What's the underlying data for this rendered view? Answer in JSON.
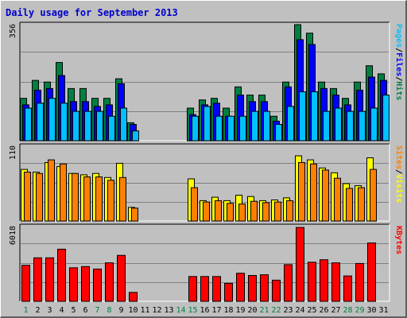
{
  "chart_data": {
    "type": "bar",
    "title": "Daily usage for September 2013",
    "categories": [
      "1",
      "2",
      "3",
      "4",
      "5",
      "6",
      "7",
      "8",
      "9",
      "10",
      "11",
      "12",
      "13",
      "14",
      "15",
      "16",
      "17",
      "18",
      "19",
      "20",
      "21",
      "22",
      "23",
      "24",
      "25",
      "26",
      "27",
      "28",
      "29",
      "30",
      "31"
    ],
    "weekend_days": [
      "1",
      "7",
      "8",
      "14",
      "15",
      "21",
      "22",
      "28",
      "29"
    ],
    "colors": {
      "background": "#c0c0c0",
      "hits": "#008040",
      "files": "#0000ff",
      "pages": "#00c0ff",
      "visits": "#ffff00",
      "sites": "#ff8000",
      "kbytes": "#ff0000",
      "title": "#0000cc",
      "weekday_tick": "#000000",
      "weekend_tick": "#008040"
    },
    "panels": [
      {
        "id": "hits-files-pages",
        "ymax": 356,
        "ytick_label": "356",
        "legend": [
          {
            "text": "Pages",
            "color": "#00c0ff"
          },
          {
            "text": "/",
            "color": "#000000"
          },
          {
            "text": "Files",
            "color": "#0000ff"
          },
          {
            "text": "/",
            "color": "#000000"
          },
          {
            "text": "Hits",
            "color": "#008040"
          }
        ],
        "series": [
          {
            "key": "hits",
            "color": "#008040",
            "values": [
              130,
              185,
              180,
              240,
              160,
              160,
              130,
              130,
              190,
              55,
              0,
              0,
              0,
              0,
              100,
              125,
              130,
              100,
              165,
              140,
              140,
              75,
              180,
              356,
              330,
              180,
              160,
              130,
              180,
              230,
              205
            ]
          },
          {
            "key": "files",
            "color": "#0000ff",
            "values": [
              110,
              155,
              160,
              200,
              120,
              120,
              105,
              110,
              175,
              50,
              0,
              0,
              0,
              0,
              80,
              110,
              115,
              75,
              140,
              120,
              120,
              60,
              165,
              310,
              295,
              160,
              140,
              110,
              155,
              195,
              185
            ]
          },
          {
            "key": "pages",
            "color": "#00c0ff",
            "values": [
              100,
              115,
              130,
              115,
              90,
              90,
              90,
              75,
              100,
              30,
              0,
              0,
              0,
              0,
              75,
              105,
              75,
              75,
              75,
              90,
              90,
              50,
              105,
              150,
              150,
              90,
              100,
              90,
              90,
              100,
              140
            ]
          }
        ]
      },
      {
        "id": "visits-sites",
        "ymax": 110,
        "ytick_label": "110",
        "legend": [
          {
            "text": "Sites",
            "color": "#ff8000"
          },
          {
            "text": "/",
            "color": "#000000"
          },
          {
            "text": "Visits",
            "color": "#ffff00"
          }
        ],
        "series": [
          {
            "key": "visits",
            "color": "#ffff00",
            "values": [
              76,
              72,
              86,
              80,
              70,
              68,
              70,
              64,
              85,
              20,
              0,
              0,
              0,
              0,
              62,
              30,
              35,
              30,
              38,
              36,
              30,
              31,
              34,
              96,
              90,
              78,
              71,
              55,
              52,
              93,
              0
            ]
          },
          {
            "key": "sites",
            "color": "#ff8000",
            "values": [
              72,
              70,
              90,
              84,
              70,
              65,
              65,
              60,
              64,
              19,
              0,
              0,
              0,
              0,
              49,
              28,
              30,
              26,
              25,
              29,
              27,
              28,
              30,
              86,
              84,
              75,
              63,
              48,
              49,
              76,
              0
            ]
          }
        ]
      },
      {
        "id": "kbytes",
        "ymax": 6018,
        "ytick_label": "6018",
        "legend": [
          {
            "text": "KBytes",
            "color": "#ff0000"
          }
        ],
        "series": [
          {
            "key": "kbytes",
            "color": "#ff0000",
            "values": [
              2900,
              3500,
              3500,
              4200,
              2700,
              2800,
              2600,
              3100,
              3700,
              720,
              0,
              0,
              0,
              0,
              2000,
              2000,
              2000,
              1450,
              2260,
              2080,
              2140,
              1700,
              2950,
              5950,
              3150,
              3350,
              3100,
              2040,
              3050,
              4700,
              0
            ]
          }
        ]
      }
    ]
  }
}
